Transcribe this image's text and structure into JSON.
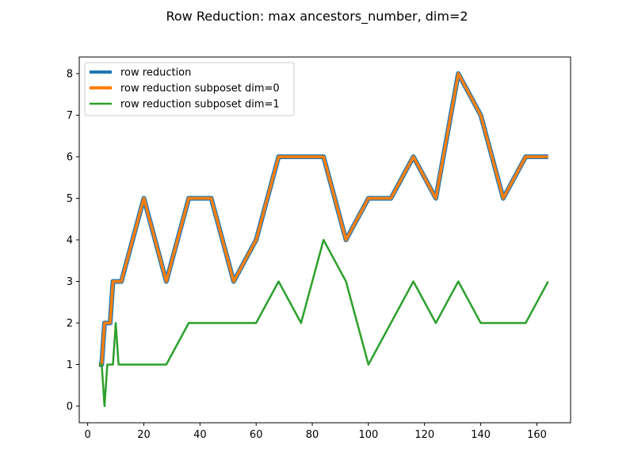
{
  "chart_data": {
    "type": "line",
    "title": "Row Reduction: max ancestors_number, dim=2",
    "xlabel": "",
    "ylabel": "",
    "xlim": [
      -3,
      172
    ],
    "ylim": [
      -0.4,
      8.4
    ],
    "xticks": [
      0,
      20,
      40,
      60,
      80,
      100,
      120,
      140,
      160
    ],
    "yticks": [
      0,
      1,
      2,
      3,
      4,
      5,
      6,
      7,
      8
    ],
    "grid": false,
    "legend_position": "top-left",
    "series": [
      {
        "name": "row reduction",
        "color": "#1f77b4",
        "x": [
          4,
          5,
          6,
          7,
          8,
          9,
          10,
          11,
          12,
          20,
          28,
          36,
          44,
          52,
          60,
          68,
          76,
          84,
          92,
          100,
          108,
          116,
          124,
          132,
          140,
          148,
          156,
          164
        ],
        "y": [
          1,
          1,
          2,
          2,
          2,
          3,
          3,
          3,
          3,
          5,
          3,
          5,
          5,
          3,
          4,
          6,
          6,
          6,
          4,
          5,
          5,
          6,
          5,
          8,
          7,
          5,
          6,
          6
        ]
      },
      {
        "name": "row reduction subposet dim=0",
        "color": "#ff7f0e",
        "x": [
          4,
          5,
          6,
          7,
          8,
          9,
          10,
          11,
          12,
          20,
          28,
          36,
          44,
          52,
          60,
          68,
          76,
          84,
          92,
          100,
          108,
          116,
          124,
          132,
          140,
          148,
          156,
          164
        ],
        "y": [
          1,
          1,
          2,
          2,
          2,
          3,
          3,
          3,
          3,
          5,
          3,
          5,
          5,
          3,
          4,
          6,
          6,
          6,
          4,
          5,
          5,
          6,
          5,
          8,
          7,
          5,
          6,
          6
        ]
      },
      {
        "name": "row reduction subposet dim=1",
        "color": "#2ca02c",
        "x": [
          4,
          5,
          6,
          7,
          8,
          9,
          10,
          11,
          12,
          20,
          28,
          36,
          44,
          52,
          60,
          68,
          76,
          84,
          92,
          100,
          108,
          116,
          124,
          132,
          140,
          148,
          156,
          164
        ],
        "y": [
          1,
          1,
          0,
          1,
          1,
          1,
          2,
          1,
          1,
          1,
          1,
          2,
          2,
          2,
          2,
          3,
          2,
          4,
          3,
          1,
          2,
          3,
          2,
          3,
          2,
          2,
          2,
          3
        ]
      }
    ]
  }
}
